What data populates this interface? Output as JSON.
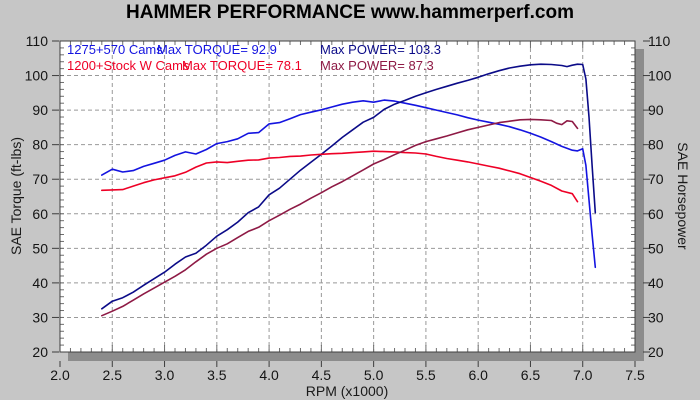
{
  "title": "HAMMER PERFORMANCE www.hammerperf.com",
  "colors": {
    "background": "#c6c6c6",
    "plot_background": "#ffffff",
    "plot_border": "#3f3f3f",
    "plot_shadow": "#8c8c8c",
    "gridline": "#999999",
    "blue_torque": "#1414e0",
    "blue_power": "#0b0b88",
    "red_torque": "#ee0026",
    "red_power": "#8e1a45"
  },
  "chart_data": {
    "type": "line",
    "title": "HAMMER PERFORMANCE www.hammerperf.com",
    "xlabel": "RPM (x1000)",
    "ylabel_left": "SAE Torque (ft-lbs)",
    "ylabel_right": "SAE Horsepower",
    "xlim": [
      2.0,
      7.5
    ],
    "ylim": [
      20,
      110
    ],
    "x_ticks": [
      "2.0",
      "2.5",
      "3.0",
      "3.5",
      "4.0",
      "4.5",
      "5.0",
      "5.5",
      "6.0",
      "6.5",
      "7.0",
      "7.5"
    ],
    "y_ticks": [
      20,
      30,
      40,
      50,
      60,
      70,
      80,
      90,
      100,
      110
    ],
    "grid": "dashed",
    "legend_position": "top-left-inside",
    "legend": {
      "rows": [
        {
          "label": "1275+570 Cams",
          "torque_label": "Max TORQUE= 92.9",
          "power_label": "Max POWER= 103.3",
          "torque_color": "#1414e0",
          "power_color": "#0b0b88"
        },
        {
          "label": "1200+Stock W Cams",
          "torque_label": "Max TORQUE= 78.1",
          "power_label": "Max POWER= 87.3",
          "torque_color": "#ee0026",
          "power_color": "#8e1a45"
        }
      ]
    },
    "series": [
      {
        "name": "1275+570 Cams SAE Torque (ft-lbs)",
        "color": "#1414e0",
        "max_value": 92.9,
        "points": [
          [
            2.4,
            71.2
          ],
          [
            2.5,
            72.9
          ],
          [
            2.6,
            72.1
          ],
          [
            2.7,
            72.5
          ],
          [
            2.8,
            73.7
          ],
          [
            2.9,
            74.6
          ],
          [
            3.0,
            75.5
          ],
          [
            3.1,
            76.9
          ],
          [
            3.2,
            77.9
          ],
          [
            3.3,
            77.3
          ],
          [
            3.4,
            78.6
          ],
          [
            3.5,
            80.3
          ],
          [
            3.6,
            80.9
          ],
          [
            3.7,
            81.7
          ],
          [
            3.8,
            83.3
          ],
          [
            3.9,
            83.5
          ],
          [
            4.0,
            86.0
          ],
          [
            4.1,
            86.4
          ],
          [
            4.2,
            87.5
          ],
          [
            4.3,
            88.7
          ],
          [
            4.4,
            89.4
          ],
          [
            4.5,
            90.1
          ],
          [
            4.6,
            90.9
          ],
          [
            4.7,
            91.7
          ],
          [
            4.8,
            92.3
          ],
          [
            4.9,
            92.7
          ],
          [
            5.0,
            92.3
          ],
          [
            5.1,
            92.9
          ],
          [
            5.2,
            92.6
          ],
          [
            5.3,
            92.0
          ],
          [
            5.4,
            91.4
          ],
          [
            5.5,
            90.7
          ],
          [
            5.6,
            90.0
          ],
          [
            5.7,
            89.3
          ],
          [
            5.8,
            88.6
          ],
          [
            5.9,
            87.8
          ],
          [
            6.0,
            87.1
          ],
          [
            6.1,
            86.5
          ],
          [
            6.2,
            85.9
          ],
          [
            6.3,
            85.2
          ],
          [
            6.4,
            84.3
          ],
          [
            6.5,
            83.3
          ],
          [
            6.6,
            82.2
          ],
          [
            6.7,
            80.9
          ],
          [
            6.8,
            79.5
          ],
          [
            6.9,
            78.4
          ],
          [
            6.95,
            78.2
          ],
          [
            7.0,
            78.8
          ],
          [
            7.03,
            74.0
          ],
          [
            7.06,
            64.0
          ],
          [
            7.09,
            54.0
          ],
          [
            7.12,
            44.5
          ]
        ]
      },
      {
        "name": "1275+570 Cams SAE Horsepower",
        "color": "#0b0b88",
        "max_value": 103.3,
        "points": [
          [
            2.4,
            32.5
          ],
          [
            2.5,
            34.7
          ],
          [
            2.6,
            35.7
          ],
          [
            2.7,
            37.3
          ],
          [
            2.8,
            39.3
          ],
          [
            2.9,
            41.2
          ],
          [
            3.0,
            43.1
          ],
          [
            3.1,
            45.4
          ],
          [
            3.2,
            47.5
          ],
          [
            3.3,
            48.6
          ],
          [
            3.4,
            50.9
          ],
          [
            3.5,
            53.5
          ],
          [
            3.6,
            55.4
          ],
          [
            3.7,
            57.6
          ],
          [
            3.8,
            60.3
          ],
          [
            3.9,
            62.0
          ],
          [
            4.0,
            65.5
          ],
          [
            4.1,
            67.4
          ],
          [
            4.2,
            70.0
          ],
          [
            4.3,
            72.6
          ],
          [
            4.4,
            74.9
          ],
          [
            4.5,
            77.2
          ],
          [
            4.6,
            79.6
          ],
          [
            4.7,
            82.1
          ],
          [
            4.8,
            84.3
          ],
          [
            4.9,
            86.5
          ],
          [
            5.0,
            87.9
          ],
          [
            5.1,
            90.2
          ],
          [
            5.2,
            91.7
          ],
          [
            5.3,
            92.8
          ],
          [
            5.4,
            94.0
          ],
          [
            5.5,
            95.0
          ],
          [
            5.6,
            96.0
          ],
          [
            5.7,
            96.9
          ],
          [
            5.8,
            97.8
          ],
          [
            5.9,
            98.6
          ],
          [
            6.0,
            99.5
          ],
          [
            6.1,
            100.5
          ],
          [
            6.2,
            101.4
          ],
          [
            6.3,
            102.2
          ],
          [
            6.4,
            102.7
          ],
          [
            6.5,
            103.1
          ],
          [
            6.6,
            103.3
          ],
          [
            6.7,
            103.2
          ],
          [
            6.8,
            102.9
          ],
          [
            6.85,
            102.6
          ],
          [
            6.9,
            103.0
          ],
          [
            6.95,
            103.3
          ],
          [
            7.0,
            103.2
          ],
          [
            7.03,
            99.0
          ],
          [
            7.06,
            88.0
          ],
          [
            7.09,
            74.0
          ],
          [
            7.12,
            60.3
          ]
        ]
      },
      {
        "name": "1200+Stock W Cams SAE Torque (ft-lbs)",
        "color": "#ee0026",
        "max_value": 78.1,
        "points": [
          [
            2.4,
            66.8
          ],
          [
            2.5,
            66.9
          ],
          [
            2.6,
            67.0
          ],
          [
            2.7,
            68.0
          ],
          [
            2.8,
            69.0
          ],
          [
            2.9,
            69.8
          ],
          [
            3.0,
            70.4
          ],
          [
            3.1,
            71.0
          ],
          [
            3.2,
            72.0
          ],
          [
            3.3,
            73.5
          ],
          [
            3.4,
            74.7
          ],
          [
            3.5,
            75.0
          ],
          [
            3.6,
            74.8
          ],
          [
            3.7,
            75.2
          ],
          [
            3.8,
            75.5
          ],
          [
            3.9,
            75.6
          ],
          [
            4.0,
            76.1
          ],
          [
            4.1,
            76.3
          ],
          [
            4.2,
            76.6
          ],
          [
            4.3,
            76.7
          ],
          [
            4.4,
            77.0
          ],
          [
            4.5,
            77.2
          ],
          [
            4.6,
            77.4
          ],
          [
            4.7,
            77.5
          ],
          [
            4.8,
            77.7
          ],
          [
            4.9,
            77.9
          ],
          [
            5.0,
            78.1
          ],
          [
            5.1,
            78.0
          ],
          [
            5.2,
            77.9
          ],
          [
            5.3,
            77.7
          ],
          [
            5.4,
            77.6
          ],
          [
            5.5,
            77.3
          ],
          [
            5.6,
            76.6
          ],
          [
            5.7,
            76.0
          ],
          [
            5.8,
            75.5
          ],
          [
            5.9,
            75.0
          ],
          [
            6.0,
            74.4
          ],
          [
            6.1,
            73.8
          ],
          [
            6.2,
            73.2
          ],
          [
            6.3,
            72.4
          ],
          [
            6.4,
            71.6
          ],
          [
            6.5,
            70.5
          ],
          [
            6.6,
            69.4
          ],
          [
            6.7,
            68.2
          ],
          [
            6.8,
            66.6
          ],
          [
            6.9,
            65.8
          ],
          [
            6.95,
            63.5
          ]
        ]
      },
      {
        "name": "1200+Stock W Cams SAE Horsepower",
        "color": "#8e1a45",
        "max_value": 87.3,
        "points": [
          [
            2.4,
            30.5
          ],
          [
            2.5,
            31.8
          ],
          [
            2.6,
            33.2
          ],
          [
            2.7,
            35.0
          ],
          [
            2.8,
            36.8
          ],
          [
            2.9,
            38.5
          ],
          [
            3.0,
            40.2
          ],
          [
            3.1,
            41.9
          ],
          [
            3.2,
            43.8
          ],
          [
            3.3,
            46.1
          ],
          [
            3.4,
            48.3
          ],
          [
            3.5,
            50.0
          ],
          [
            3.6,
            51.3
          ],
          [
            3.7,
            53.1
          ],
          [
            3.8,
            54.9
          ],
          [
            3.9,
            56.1
          ],
          [
            4.0,
            58.0
          ],
          [
            4.1,
            59.6
          ],
          [
            4.2,
            61.3
          ],
          [
            4.3,
            62.8
          ],
          [
            4.4,
            64.5
          ],
          [
            4.5,
            66.1
          ],
          [
            4.6,
            67.8
          ],
          [
            4.7,
            69.3
          ],
          [
            4.8,
            71.0
          ],
          [
            4.9,
            72.7
          ],
          [
            5.0,
            74.4
          ],
          [
            5.1,
            75.7
          ],
          [
            5.2,
            77.1
          ],
          [
            5.3,
            78.4
          ],
          [
            5.4,
            79.8
          ],
          [
            5.5,
            80.9
          ],
          [
            5.6,
            81.7
          ],
          [
            5.7,
            82.5
          ],
          [
            5.8,
            83.4
          ],
          [
            5.9,
            84.3
          ],
          [
            6.0,
            85.0
          ],
          [
            6.1,
            85.7
          ],
          [
            6.2,
            86.4
          ],
          [
            6.3,
            86.8
          ],
          [
            6.4,
            87.2
          ],
          [
            6.5,
            87.3
          ],
          [
            6.6,
            87.2
          ],
          [
            6.7,
            87.0
          ],
          [
            6.75,
            86.2
          ],
          [
            6.8,
            85.8
          ],
          [
            6.85,
            86.9
          ],
          [
            6.9,
            86.7
          ],
          [
            6.95,
            84.7
          ]
        ]
      }
    ]
  }
}
